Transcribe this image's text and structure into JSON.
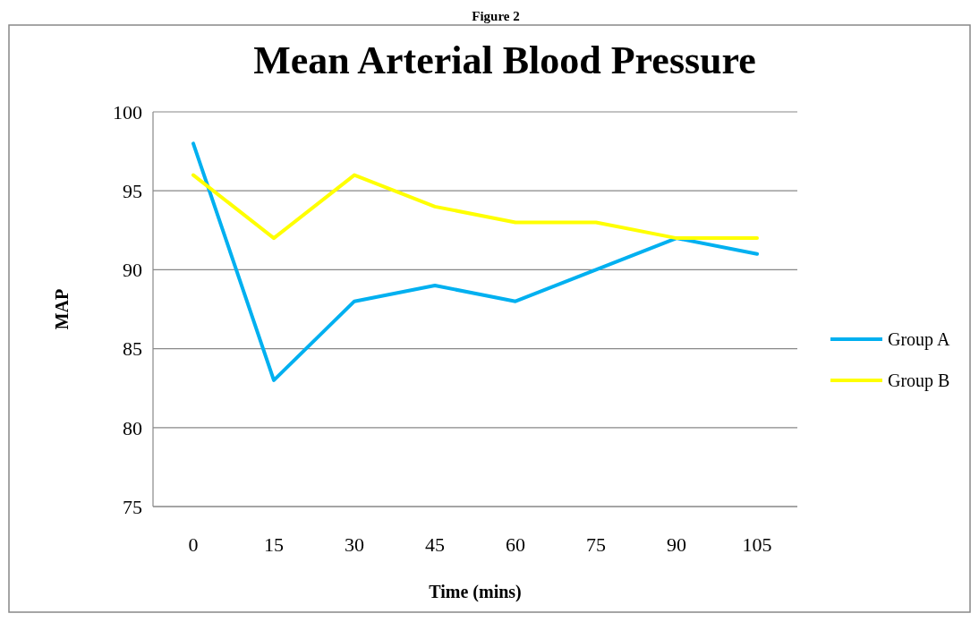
{
  "chart_data": {
    "type": "line",
    "title": "Mean Arterial Blood Pressure",
    "xlabel": "Time (mins)",
    "ylabel": "MAP",
    "annotations": [
      "Figure 2"
    ],
    "categories": [
      "0",
      "15",
      "30",
      "45",
      "60",
      "75",
      "90",
      "105"
    ],
    "series": [
      {
        "name": "Group A",
        "color": "#00b0f0",
        "values": [
          98,
          83,
          88,
          89,
          88,
          90,
          92,
          91
        ]
      },
      {
        "name": "Group B",
        "color": "#ffff00",
        "values": [
          96,
          92,
          96,
          94,
          93,
          93,
          92,
          92
        ]
      }
    ],
    "ylim": [
      75,
      100
    ],
    "yticks": [
      75,
      80,
      85,
      90,
      95,
      100
    ],
    "grid": "y",
    "legend": "right",
    "marker": "none",
    "line_style": "solid"
  }
}
